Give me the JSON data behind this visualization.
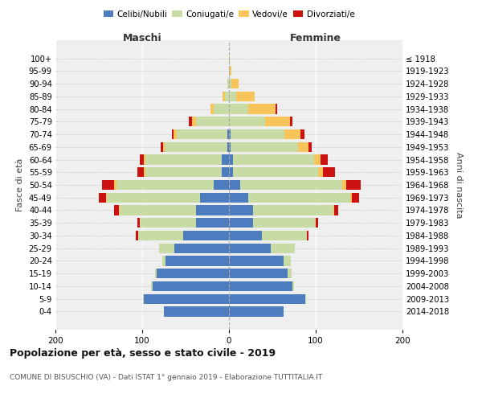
{
  "age_groups": [
    "0-4",
    "5-9",
    "10-14",
    "15-19",
    "20-24",
    "25-29",
    "30-34",
    "35-39",
    "40-44",
    "45-49",
    "50-54",
    "55-59",
    "60-64",
    "65-69",
    "70-74",
    "75-79",
    "80-84",
    "85-89",
    "90-94",
    "95-99",
    "100+"
  ],
  "birth_years": [
    "2014-2018",
    "2009-2013",
    "2004-2008",
    "1999-2003",
    "1994-1998",
    "1989-1993",
    "1984-1988",
    "1979-1983",
    "1974-1978",
    "1969-1973",
    "1964-1968",
    "1959-1963",
    "1954-1958",
    "1949-1953",
    "1944-1948",
    "1939-1943",
    "1934-1938",
    "1929-1933",
    "1924-1928",
    "1919-1923",
    "≤ 1918"
  ],
  "maschi": {
    "celibi": [
      75,
      98,
      88,
      83,
      73,
      63,
      53,
      38,
      38,
      33,
      18,
      8,
      8,
      2,
      2,
      0,
      0,
      0,
      0,
      0,
      0
    ],
    "coniugati": [
      0,
      1,
      2,
      2,
      4,
      18,
      52,
      65,
      88,
      108,
      112,
      88,
      88,
      72,
      58,
      38,
      18,
      5,
      2,
      0,
      0
    ],
    "vedovi": [
      0,
      0,
      0,
      0,
      0,
      0,
      0,
      0,
      1,
      1,
      2,
      2,
      2,
      2,
      4,
      5,
      3,
      2,
      0,
      0,
      0
    ],
    "divorziati": [
      0,
      0,
      0,
      0,
      0,
      0,
      2,
      3,
      5,
      8,
      14,
      8,
      5,
      3,
      2,
      3,
      0,
      0,
      0,
      0,
      0
    ]
  },
  "femmine": {
    "nubili": [
      63,
      88,
      73,
      68,
      63,
      48,
      38,
      28,
      28,
      22,
      13,
      5,
      5,
      2,
      2,
      0,
      0,
      0,
      0,
      0,
      0
    ],
    "coniugate": [
      0,
      1,
      2,
      4,
      8,
      28,
      52,
      72,
      92,
      118,
      118,
      98,
      93,
      78,
      62,
      42,
      22,
      8,
      3,
      1,
      0
    ],
    "vedove": [
      0,
      0,
      0,
      0,
      0,
      0,
      0,
      0,
      1,
      2,
      4,
      5,
      8,
      12,
      18,
      28,
      32,
      22,
      8,
      2,
      1
    ],
    "divorziate": [
      0,
      0,
      0,
      0,
      0,
      0,
      2,
      3,
      5,
      8,
      17,
      14,
      8,
      3,
      5,
      3,
      2,
      0,
      0,
      0,
      0
    ]
  },
  "colors": {
    "celibi_nubili": "#4d7dbe",
    "coniugati": "#c8dba5",
    "vedovi": "#f9c45a",
    "divorziati": "#cc1111"
  },
  "title": "Popolazione per età, sesso e stato civile - 2019",
  "subtitle": "COMUNE DI BISUSCHIO (VA) - Dati ISTAT 1° gennaio 2019 - Elaborazione TUTTITALIA.IT",
  "xlabel_left": "Maschi",
  "xlabel_right": "Femmine",
  "ylabel_left": "Fasce di età",
  "ylabel_right": "Anni di nascita",
  "xlim": 200,
  "bg_color": "#efefef"
}
